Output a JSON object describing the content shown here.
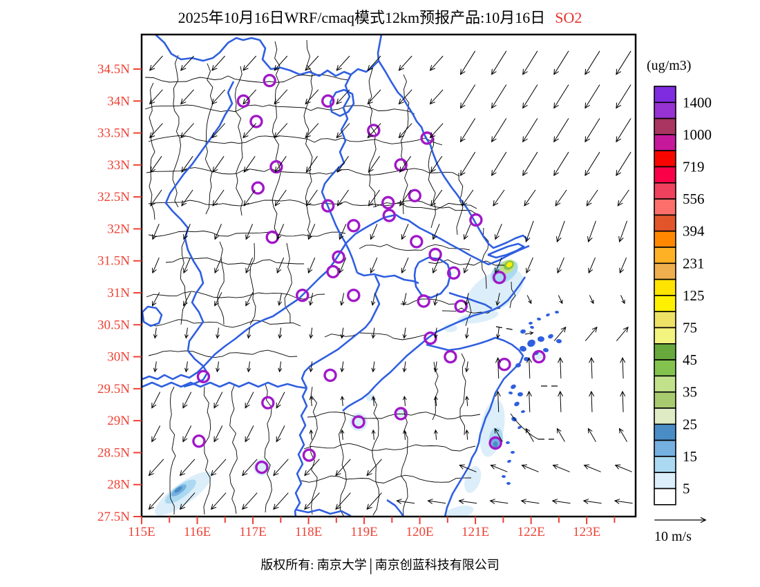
{
  "title": {
    "main": "2025年10月16日WRF/cmaq模式12km预报产品:10月16日",
    "pollutant": "SO2"
  },
  "footer": {
    "left": "版权所有: 南京大学",
    "separator": "|",
    "right": "南京创蓝科技有限公司"
  },
  "palette": {
    "axis_red": "#ee4135",
    "title_red": "#e8312a",
    "province_blue": "#2f5fe0",
    "county_black": "#000000",
    "marker_purple": "#a018c8",
    "frame_black": "#000000"
  },
  "legend": {
    "title": "(ug/m3)",
    "values": [
      "1400",
      "1000",
      "719",
      "556",
      "394",
      "231",
      "125",
      "75",
      "45",
      "35",
      "25",
      "15",
      "5"
    ],
    "colors": [
      "#7f2ce0",
      "#9633d2",
      "#a93560",
      "#c6189a",
      "#f90500",
      "#fb0048",
      "#f0415e",
      "#fc6f6b",
      "#e2552b",
      "#ff8800",
      "#ffb125",
      "#f0af4e",
      "#ffe400",
      "#fff000",
      "#ede266",
      "#f3f37f",
      "#67a93d",
      "#84c24f",
      "#c2e18b",
      "#a9cb6f",
      "#deebc4",
      "#4a8dc6",
      "#74b0e0",
      "#abd9f2",
      "#dceef9",
      "#ffffff"
    ]
  },
  "wind_scale": {
    "label": "10 m/s"
  },
  "axes": {
    "lat_labels": [
      "34.5N",
      "34N",
      "33.5N",
      "33N",
      "32.5N",
      "32N",
      "31.5N",
      "31N",
      "30.5N",
      "30N",
      "29.5N",
      "29N",
      "28.5N",
      "28N",
      "27.5N"
    ],
    "lat_values": [
      34.5,
      34,
      33.5,
      33,
      32.5,
      32,
      31.5,
      31,
      30.5,
      30,
      29.5,
      29,
      28.5,
      28,
      27.5
    ],
    "lon_labels": [
      "115E",
      "116E",
      "117E",
      "118E",
      "119E",
      "120E",
      "121E",
      "122E",
      "123E"
    ],
    "lon_values": [
      115,
      116,
      117,
      118,
      119,
      120,
      121,
      122,
      123
    ],
    "lon_minor": [
      115.5,
      116.5,
      117.5,
      118.5,
      119.5,
      120.5,
      121.5,
      122.5,
      123.5
    ]
  },
  "map": {
    "bounds": {
      "lon_min": 115,
      "lon_max": 123.88,
      "lat_min": 27.5,
      "lat_max": 35.04
    },
    "cities": [
      [
        117.3,
        34.32
      ],
      [
        116.83,
        34.0
      ],
      [
        118.35,
        34.0
      ],
      [
        117.06,
        33.68
      ],
      [
        119.17,
        33.54
      ],
      [
        120.13,
        33.42
      ],
      [
        117.42,
        32.97
      ],
      [
        119.66,
        33.0
      ],
      [
        117.09,
        32.64
      ],
      [
        119.91,
        32.52
      ],
      [
        118.35,
        32.36
      ],
      [
        119.43,
        32.41
      ],
      [
        119.45,
        32.21
      ],
      [
        118.81,
        32.05
      ],
      [
        121.01,
        32.14
      ],
      [
        117.35,
        31.87
      ],
      [
        119.94,
        31.8
      ],
      [
        120.28,
        31.6
      ],
      [
        118.54,
        31.56
      ],
      [
        118.44,
        31.33
      ],
      [
        120.61,
        31.31
      ],
      [
        121.43,
        31.24
      ],
      [
        117.89,
        30.96
      ],
      [
        118.81,
        30.96
      ],
      [
        120.07,
        30.87
      ],
      [
        120.74,
        30.79
      ],
      [
        120.19,
        30.29
      ],
      [
        120.55,
        30.0
      ],
      [
        121.52,
        29.88
      ],
      [
        122.14,
        30.0
      ],
      [
        116.11,
        29.69
      ],
      [
        118.39,
        29.71
      ],
      [
        117.27,
        29.28
      ],
      [
        119.66,
        29.11
      ],
      [
        118.9,
        28.98
      ],
      [
        116.03,
        28.68
      ],
      [
        118.01,
        28.46
      ],
      [
        117.16,
        28.27
      ],
      [
        121.36,
        28.65
      ]
    ],
    "wind_grid": {
      "lon_start": 115.25,
      "lon_step": 0.56,
      "lat_start": 27.73,
      "lat_step": 0.527,
      "cols": 16,
      "rows": 15
    },
    "wind_zones": [
      {
        "lon": [
          120.7,
          124
        ],
        "lat": [
          32.6,
          35.2
        ],
        "dir": 212,
        "len": 40
      },
      {
        "lon": [
          115,
          124
        ],
        "lat": [
          33.2,
          35.2
        ],
        "dir": 222,
        "len": 28
      },
      {
        "lon": [
          115,
          124
        ],
        "lat": [
          32.2,
          33.2
        ],
        "dir": 215,
        "len": 28
      },
      {
        "lon": [
          121.8,
          124
        ],
        "lat": [
          31.5,
          32.6
        ],
        "dir": 200,
        "len": 32
      },
      {
        "lon": [
          115,
          124
        ],
        "lat": [
          31.4,
          32.2
        ],
        "dir": 203,
        "len": 24
      },
      {
        "lon": [
          121.9,
          124
        ],
        "lat": [
          30.85,
          31.4
        ],
        "dir": 155,
        "len": 13
      },
      {
        "lon": [
          122.2,
          124
        ],
        "lat": [
          30.1,
          30.85
        ],
        "dir": 40,
        "len": 26
      },
      {
        "lon": [
          121.5,
          122.2
        ],
        "lat": [
          30.1,
          30.85
        ],
        "dir": 80,
        "len": 12
      },
      {
        "lon": [
          121.3,
          124
        ],
        "lat": [
          29.3,
          30.1
        ],
        "dir": 358,
        "len": 30
      },
      {
        "lon": [
          120.9,
          124
        ],
        "lat": [
          28.55,
          29.3
        ],
        "dir": 330,
        "len": 22
      },
      {
        "lon": [
          120.4,
          124
        ],
        "lat": [
          27.95,
          28.55
        ],
        "dir": 292,
        "len": 26
      },
      {
        "lon": [
          119.3,
          124
        ],
        "lat": [
          27.5,
          27.95
        ],
        "dir": 278,
        "len": 26
      },
      {
        "lon": [
          115,
          117
        ],
        "lat": [
          30.4,
          31.4
        ],
        "dir": 208,
        "len": 22
      },
      {
        "lon": [
          115,
          124
        ],
        "lat": [
          30.4,
          31.4
        ],
        "dir": 192,
        "len": 18
      },
      {
        "lon": [
          115,
          124
        ],
        "lat": [
          29.4,
          30.4
        ],
        "dir": 188,
        "len": 15
      },
      {
        "lon": [
          117.8,
          120.9
        ],
        "lat": [
          28.55,
          29.4
        ],
        "dir": 355,
        "len": 14
      },
      {
        "lon": [
          115,
          117.8
        ],
        "lat": [
          28.55,
          29.4
        ],
        "dir": 207,
        "len": 26
      },
      {
        "lon": [
          115,
          119.3
        ],
        "lat": [
          27.5,
          28.55
        ],
        "dir": 222,
        "len": 32
      }
    ],
    "so2_blobs": [
      [
        121.35,
        31.02,
        46,
        26,
        -32,
        "#dceef9"
      ],
      [
        121.52,
        31.33,
        22,
        14,
        -35,
        "#abd9f2"
      ],
      [
        121.58,
        31.41,
        12,
        9,
        -35,
        "#c2e18b"
      ],
      [
        121.6,
        31.43,
        8,
        6,
        -35,
        "#84c24f"
      ],
      [
        121.61,
        31.44,
        4.5,
        3.5,
        -35,
        "#fff000"
      ],
      [
        121.05,
        30.62,
        30,
        8,
        -10,
        "#dceef9"
      ],
      [
        120.55,
        30.45,
        10,
        6,
        0,
        "#dceef9"
      ],
      [
        121.3,
        28.88,
        17,
        42,
        10,
        "#dceef9"
      ],
      [
        120.95,
        28.08,
        11,
        20,
        18,
        "#dceef9"
      ],
      [
        121.37,
        28.72,
        10,
        16,
        6,
        "#abd9f2"
      ],
      [
        121.36,
        28.66,
        6,
        8,
        0,
        "#74b0e0"
      ],
      [
        121.36,
        28.63,
        3.5,
        4.5,
        0,
        "#4a8dc6"
      ],
      [
        115.75,
        27.86,
        50,
        15,
        -36,
        "#dceef9"
      ],
      [
        115.7,
        27.89,
        27,
        9,
        -36,
        "#abd9f2"
      ],
      [
        115.67,
        27.91,
        13,
        5,
        -36,
        "#74b0e0"
      ],
      [
        115.66,
        27.92,
        6.5,
        2.8,
        -36,
        "#4a8dc6"
      ],
      [
        118.9,
        28.98,
        13,
        13,
        0,
        "#dceef9"
      ],
      [
        117.16,
        28.27,
        12,
        12,
        0,
        "#dceef9"
      ],
      [
        119.66,
        29.13,
        9,
        7,
        0,
        "#dceef9"
      ],
      [
        119.12,
        29.36,
        7,
        5,
        0,
        "#dceef9"
      ],
      [
        120.7,
        27.56,
        22,
        9,
        -15,
        "#dceef9"
      ],
      [
        122.12,
        30.02,
        9,
        6,
        0,
        "#dceef9"
      ]
    ],
    "islands": [
      [
        757,
        505,
        4
      ],
      [
        769,
        497,
        5
      ],
      [
        783,
        491,
        4
      ],
      [
        797,
        487,
        3
      ],
      [
        809,
        494,
        3
      ],
      [
        776,
        511,
        3
      ],
      [
        790,
        507,
        3
      ],
      [
        762,
        520,
        3
      ],
      [
        750,
        529,
        3
      ],
      [
        806,
        452,
        2
      ],
      [
        793,
        456,
        2
      ],
      [
        780,
        462,
        2
      ],
      [
        768,
        468,
        2
      ],
      [
        757,
        480,
        3
      ],
      [
        770,
        474,
        2
      ],
      [
        743,
        560,
        3
      ],
      [
        753,
        571,
        3
      ],
      [
        748,
        585,
        3
      ],
      [
        757,
        596,
        2
      ],
      [
        744,
        607,
        3
      ],
      [
        752,
        619,
        2
      ],
      [
        739,
        569,
        2
      ],
      [
        735,
        641,
        2
      ],
      [
        742,
        655,
        2
      ],
      [
        737,
        668,
        2
      ],
      [
        729,
        690,
        2
      ],
      [
        736,
        700,
        2
      ]
    ]
  }
}
